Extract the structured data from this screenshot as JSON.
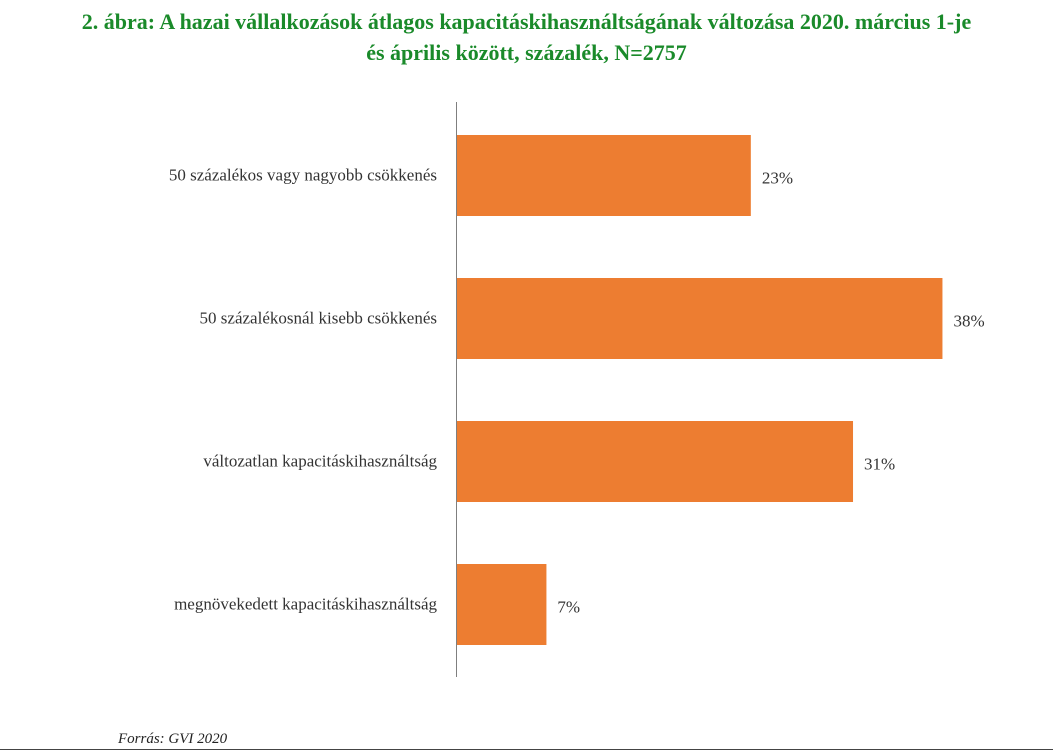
{
  "colors": {
    "title": "#1a8a2a",
    "bar": "#ed7d31",
    "axis": "#7f7f7f",
    "text": "#333333"
  },
  "chart_data": {
    "type": "bar",
    "orientation": "horizontal",
    "title_lines": [
      "2. ábra: A hazai vállalkozások átlagos kapacitáskihasználtságának változása 2020. március 1-je",
      "és április között, százalék, N=2757"
    ],
    "categories": [
      "50 százalékos vagy nagyobb csökkenés",
      "50 százalékosnál kisebb csökkenés",
      "változatlan kapacitáskihasználtság",
      "megnövekedett kapacitáskihasználtság"
    ],
    "values": [
      23,
      38,
      31,
      7
    ],
    "value_labels": [
      "23%",
      "38%",
      "31%",
      "7%"
    ],
    "unit": "%",
    "xlim": [
      0,
      40
    ],
    "grid": false,
    "legend": "none"
  },
  "source": "Forrás: GVI 2020"
}
